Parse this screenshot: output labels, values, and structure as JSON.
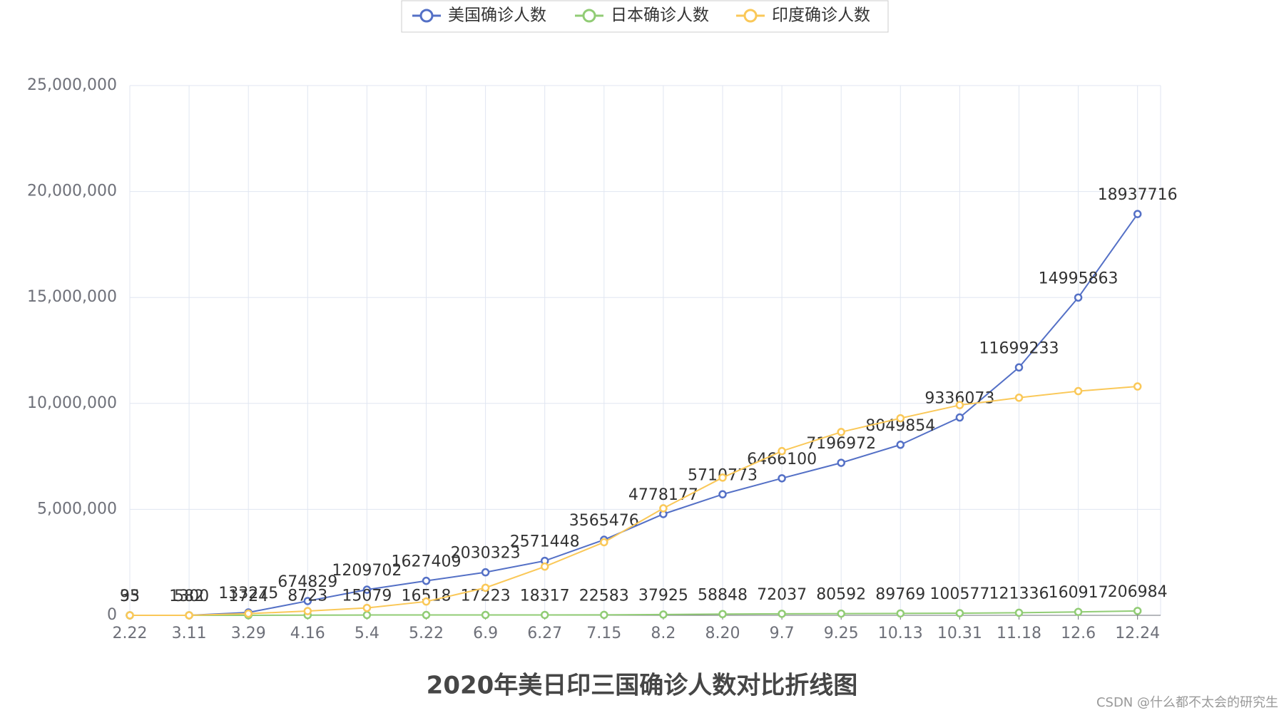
{
  "chart_data": {
    "type": "line",
    "title": "2020年美日印三国确诊人数对比折线图",
    "watermark": "CSDN @什么都不太会的研究生",
    "categories": [
      "2.22",
      "3.11",
      "3.29",
      "4.16",
      "5.4",
      "5.22",
      "6.9",
      "6.27",
      "7.15",
      "8.2",
      "8.20",
      "9.7",
      "9.25",
      "10.13",
      "10.31",
      "11.18",
      "12.6",
      "12.24"
    ],
    "series": [
      {
        "name": "美国确诊人数",
        "color": "#5470c6",
        "labels": true,
        "values": [
          35,
          1300,
          133275,
          674829,
          1209702,
          1627409,
          2030323,
          2571448,
          3565476,
          4778177,
          5710773,
          6466100,
          7196972,
          8049854,
          9336073,
          11699233,
          14995863,
          18937716
        ]
      },
      {
        "name": "日本确诊人数",
        "color": "#91cc75",
        "labels": true,
        "values": [
          93,
          582,
          1724,
          8723,
          15079,
          16518,
          17223,
          18317,
          22583,
          37925,
          58848,
          72037,
          80592,
          89769,
          100577,
          121336,
          160917,
          206984
        ]
      },
      {
        "name": "印度确诊人数",
        "color": "#fac858",
        "labels": false,
        "values": [
          3,
          62,
          80000,
          200000,
          350000,
          650000,
          1300000,
          2300000,
          3450000,
          5050000,
          6500000,
          7750000,
          8650000,
          9300000,
          9920000,
          10270000,
          10580000,
          10800000
        ]
      }
    ],
    "ylim": [
      0,
      25000000
    ],
    "yticks": [
      0,
      {
        "value": 5000000,
        "label": "5,000,000"
      },
      {
        "value": 10000000,
        "label": "10,000,000"
      },
      {
        "value": 15000000,
        "label": "15,000,000"
      },
      {
        "value": 20000000,
        "label": "20,000,000"
      },
      {
        "value": 25000000,
        "label": "25,000,000"
      }
    ],
    "grid": true
  }
}
